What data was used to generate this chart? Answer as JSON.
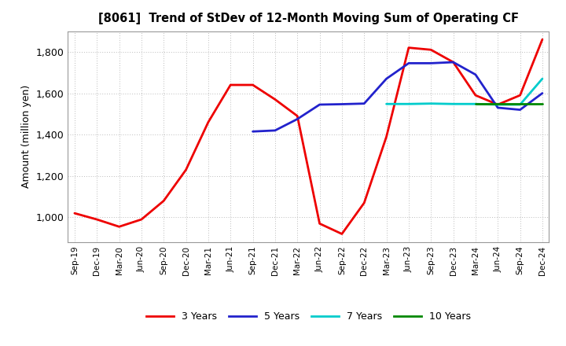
{
  "title": "[8061]  Trend of StDev of 12-Month Moving Sum of Operating CF",
  "ylabel": "Amount (million yen)",
  "background_color": "#ffffff",
  "grid_color": "#bbbbbb",
  "x_labels": [
    "Sep-19",
    "Dec-19",
    "Mar-20",
    "Jun-20",
    "Sep-20",
    "Dec-20",
    "Mar-21",
    "Jun-21",
    "Sep-21",
    "Dec-21",
    "Mar-22",
    "Jun-22",
    "Sep-22",
    "Dec-22",
    "Mar-23",
    "Jun-23",
    "Sep-23",
    "Dec-23",
    "Mar-24",
    "Jun-24",
    "Sep-24",
    "Dec-24"
  ],
  "series": {
    "3 Years": {
      "color": "#ee0000",
      "linewidth": 2.0,
      "data_x": [
        0,
        1,
        2,
        3,
        4,
        5,
        6,
        7,
        8,
        9,
        10,
        11,
        12,
        13,
        14,
        15,
        16,
        17,
        18,
        19,
        20,
        21
      ],
      "data_y": [
        1020,
        990,
        955,
        990,
        1080,
        1230,
        1460,
        1640,
        1640,
        1570,
        1490,
        970,
        920,
        1070,
        1390,
        1820,
        1810,
        1750,
        1590,
        1545,
        1590,
        1860
      ]
    },
    "5 Years": {
      "color": "#2222cc",
      "linewidth": 2.0,
      "data_x": [
        8,
        9,
        10,
        11,
        12,
        13,
        14,
        15,
        16,
        17,
        18,
        19,
        20,
        21
      ],
      "data_y": [
        1415,
        1420,
        1475,
        1545,
        1547,
        1550,
        1670,
        1745,
        1745,
        1750,
        1690,
        1530,
        1520,
        1600
      ]
    },
    "7 Years": {
      "color": "#00cccc",
      "linewidth": 2.0,
      "data_x": [
        14,
        15,
        16,
        17,
        18,
        19,
        20,
        21
      ],
      "data_y": [
        1548,
        1548,
        1550,
        1548,
        1548,
        1545,
        1545,
        1670
      ]
    },
    "10 Years": {
      "color": "#008800",
      "linewidth": 2.0,
      "data_x": [
        18,
        19,
        20,
        21
      ],
      "data_y": [
        1548,
        1548,
        1548,
        1548
      ]
    }
  },
  "ylim": [
    880,
    1900
  ],
  "yticks": [
    1000,
    1200,
    1400,
    1600,
    1800
  ],
  "legend_labels": [
    "3 Years",
    "5 Years",
    "7 Years",
    "10 Years"
  ],
  "legend_colors": [
    "#ee0000",
    "#2222cc",
    "#00cccc",
    "#008800"
  ]
}
